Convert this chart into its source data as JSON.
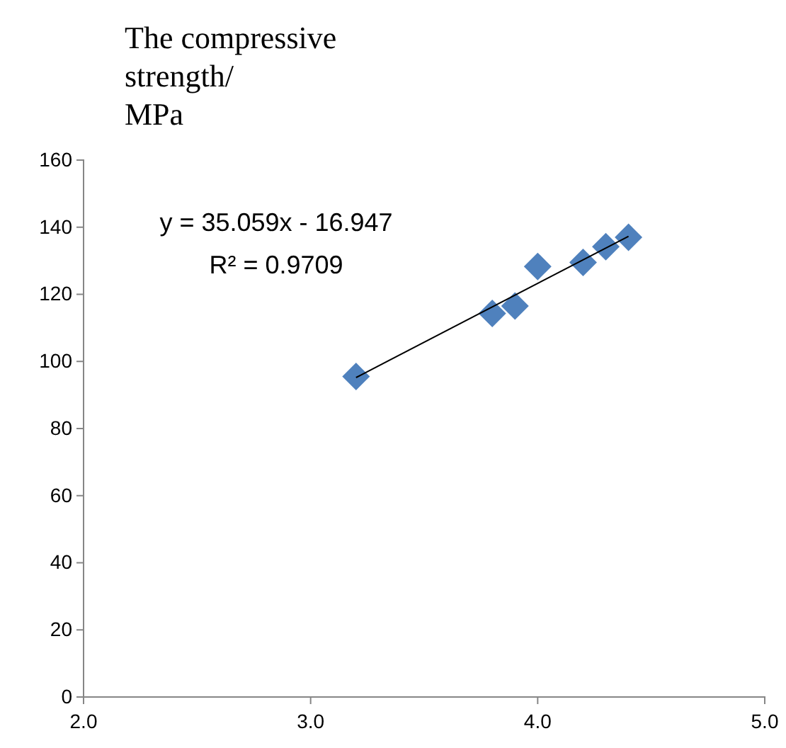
{
  "chart_data": {
    "type": "scatter",
    "ylabel": "The compressive strength/ MPa",
    "xlim": [
      2.0,
      5.0
    ],
    "xticks": [
      {
        "value": 2,
        "label": "2.0"
      },
      {
        "value": 3,
        "label": "3.0"
      },
      {
        "value": 4,
        "label": "4.0"
      },
      {
        "value": 5,
        "label": "5.0"
      }
    ],
    "ylim": [
      0,
      160
    ],
    "yticks": [
      0,
      20,
      40,
      60,
      80,
      100,
      120,
      140,
      160
    ],
    "grid": false,
    "series": [
      {
        "type": "scatter",
        "marker": "diamond",
        "color": "#4f81bd",
        "x": [
          3.2,
          3.8,
          3.9,
          4.0,
          4.2,
          4.3,
          4.4
        ],
        "values": [
          95.5,
          114.3,
          116.5,
          128.3,
          129.5,
          134.2,
          137
        ]
      },
      {
        "type": "line",
        "color": "#000000",
        "x": [
          3.2,
          4.4
        ],
        "values": [
          95.2,
          137.3
        ]
      }
    ],
    "annotations": [
      "y = 35.059x - 16.947",
      "R² = 0.9709"
    ]
  }
}
